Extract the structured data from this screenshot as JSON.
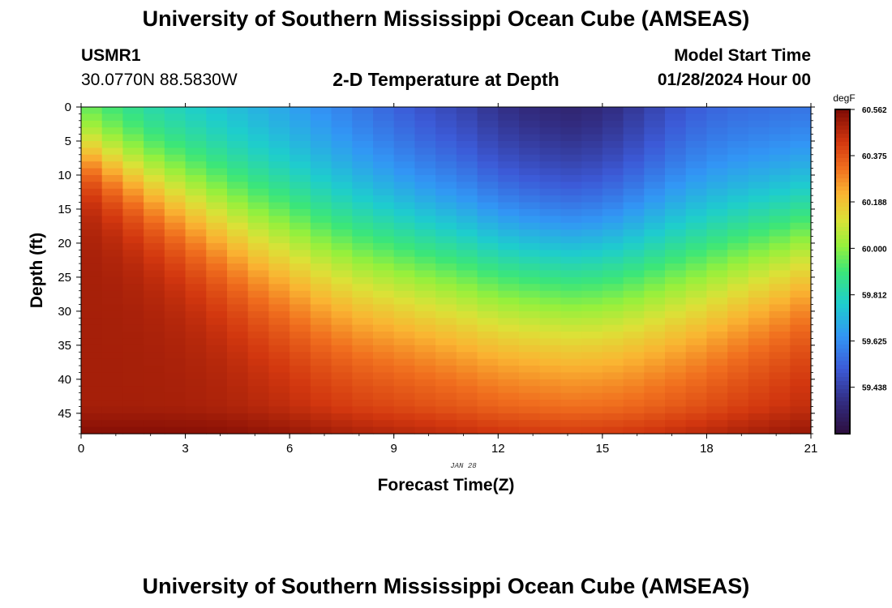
{
  "header": {
    "title": "University of Southern Mississippi Ocean Cube (AMSEAS)",
    "station_id": "USMR1",
    "station_coords": "30.0770N  88.5830W",
    "plot_title": "2-D Temperature at Depth",
    "model_start_label": "Model Start Time",
    "model_start_value": "01/28/2024 Hour 00"
  },
  "footer": {
    "title": "University of Southern Mississippi Ocean Cube (AMSEAS)"
  },
  "chart_data": {
    "type": "heatmap",
    "title": "2-D Temperature at Depth",
    "xlabel": "Forecast Time(Z)",
    "ylabel": "Depth (ft)",
    "date_label": "JAN 28",
    "x_ticks": [
      0,
      3,
      6,
      9,
      12,
      15,
      18,
      21
    ],
    "y_ticks": [
      0,
      5,
      10,
      15,
      20,
      25,
      30,
      35,
      40,
      45
    ],
    "xlim": [
      0,
      21
    ],
    "ylim": [
      0,
      48
    ],
    "colorbar": {
      "unit": "degF",
      "min": 59.25,
      "max": 60.562,
      "tick_labels": [
        "60.562",
        "60.375",
        "60.188",
        "60.000",
        "59.812",
        "59.625",
        "59.438"
      ],
      "tick_values": [
        60.562,
        60.375,
        60.188,
        60.0,
        59.812,
        59.625,
        59.438
      ]
    },
    "field": {
      "description": "Temperature (degF) vs forecast hour and depth",
      "surface_temp_by_hour": [
        59.9,
        59.83,
        59.76,
        59.72,
        59.68,
        59.64,
        59.6,
        59.55,
        59.5,
        59.45,
        59.4,
        59.36,
        59.3,
        59.27,
        59.25,
        59.27,
        59.33,
        59.4,
        59.45,
        59.47,
        59.48,
        59.49
      ],
      "bottom_temp": 60.5,
      "mixed_layer_base_ft_by_hour": [
        10,
        14,
        18,
        22,
        26,
        30,
        33,
        36,
        38,
        39,
        40,
        41,
        42,
        42.5,
        43,
        43,
        42.5,
        41.5,
        40,
        37.5,
        35,
        32
      ]
    }
  }
}
